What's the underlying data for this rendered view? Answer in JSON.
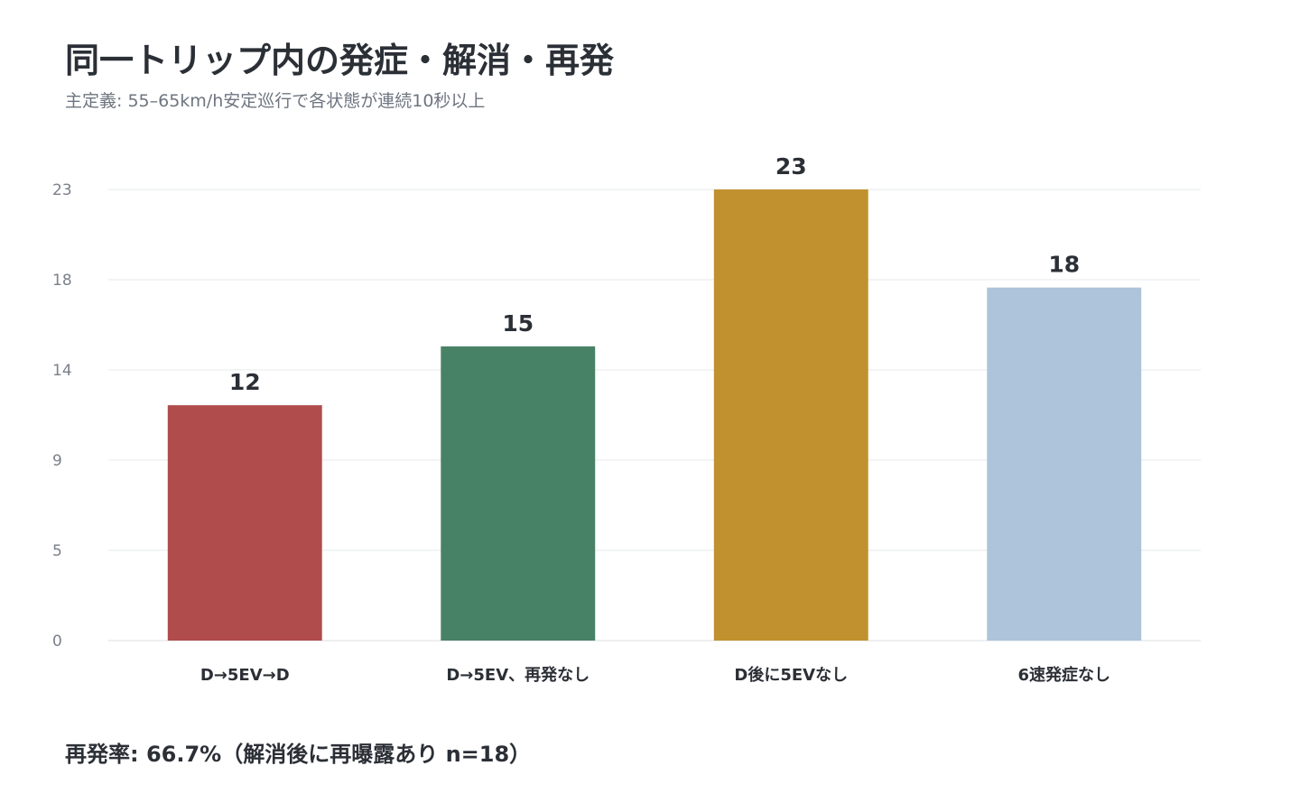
{
  "header": {
    "title": "同一トリップ内の発症・解消・再発",
    "subtitle": "主定義: 55–65km/h安定巡行で各状態が連続10秒以上"
  },
  "footer": {
    "note": "再発率: 66.7%（解消後に再曝露あり n=18）"
  },
  "chart_data": {
    "type": "bar",
    "title": "同一トリップ内の発症・解消・再発",
    "subtitle": "主定義: 55–65km/h安定巡行で各状態が連続10秒以上",
    "categories": [
      "D→5EV→D",
      "D→5EV、再発なし",
      "D後に5EVなし",
      "6速発症なし"
    ],
    "values": [
      12,
      15,
      23,
      18
    ],
    "colors": [
      "#b04c4c",
      "#488266",
      "#c0912e",
      "#adc4da"
    ],
    "yticks": [
      0,
      5,
      9,
      14,
      18,
      23
    ],
    "ylim": [
      0,
      23
    ],
    "grid": true,
    "legend": "none",
    "xlabel": "",
    "ylabel": ""
  }
}
